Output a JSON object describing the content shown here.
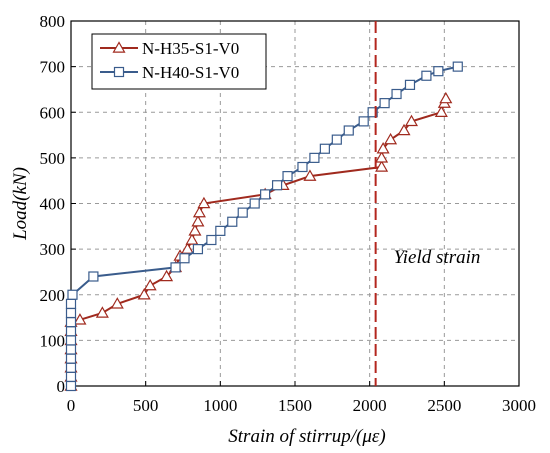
{
  "chart_data": {
    "type": "line",
    "xlabel": "Strain of stirrup/(με)",
    "ylabel": "Load(kN)",
    "xlim": [
      0,
      3000
    ],
    "ylim": [
      0,
      800
    ],
    "xticks": [
      0,
      500,
      1000,
      1500,
      2000,
      2500,
      3000
    ],
    "yticks": [
      0,
      100,
      200,
      300,
      400,
      500,
      600,
      700,
      800
    ],
    "grid": true,
    "legend_position": "top-left",
    "annotation": {
      "text": "Yield strain",
      "x": 2040
    },
    "series": [
      {
        "name": "N-H35-S1-V0",
        "color": "#a02a1e",
        "marker": "triangle",
        "points": [
          [
            0,
            0
          ],
          [
            0,
            20
          ],
          [
            0,
            40
          ],
          [
            0,
            60
          ],
          [
            0,
            80
          ],
          [
            0,
            100
          ],
          [
            0,
            120
          ],
          [
            0,
            140
          ],
          [
            60,
            145
          ],
          [
            210,
            160
          ],
          [
            310,
            180
          ],
          [
            490,
            200
          ],
          [
            530,
            220
          ],
          [
            640,
            240
          ],
          [
            700,
            260
          ],
          [
            730,
            285
          ],
          [
            780,
            300
          ],
          [
            810,
            320
          ],
          [
            830,
            340
          ],
          [
            850,
            360
          ],
          [
            860,
            380
          ],
          [
            890,
            400
          ],
          [
            1300,
            420
          ],
          [
            1420,
            440
          ],
          [
            1600,
            460
          ],
          [
            2080,
            480
          ],
          [
            2080,
            500
          ],
          [
            2090,
            520
          ],
          [
            2140,
            540
          ],
          [
            2230,
            560
          ],
          [
            2280,
            580
          ],
          [
            2480,
            600
          ],
          [
            2500,
            620
          ],
          [
            2510,
            630
          ]
        ]
      },
      {
        "name": "N-H40-S1-V0",
        "color": "#3a5c8c",
        "marker": "square",
        "points": [
          [
            0,
            0
          ],
          [
            0,
            20
          ],
          [
            0,
            40
          ],
          [
            0,
            60
          ],
          [
            0,
            80
          ],
          [
            0,
            100
          ],
          [
            0,
            120
          ],
          [
            0,
            140
          ],
          [
            0,
            160
          ],
          [
            0,
            180
          ],
          [
            10,
            200
          ],
          [
            150,
            240
          ],
          [
            700,
            260
          ],
          [
            760,
            280
          ],
          [
            850,
            300
          ],
          [
            940,
            320
          ],
          [
            1000,
            340
          ],
          [
            1080,
            360
          ],
          [
            1150,
            380
          ],
          [
            1230,
            400
          ],
          [
            1300,
            420
          ],
          [
            1380,
            440
          ],
          [
            1450,
            460
          ],
          [
            1550,
            480
          ],
          [
            1630,
            500
          ],
          [
            1700,
            520
          ],
          [
            1780,
            540
          ],
          [
            1860,
            560
          ],
          [
            1960,
            580
          ],
          [
            2020,
            600
          ],
          [
            2100,
            620
          ],
          [
            2180,
            640
          ],
          [
            2270,
            660
          ],
          [
            2380,
            680
          ],
          [
            2460,
            690
          ],
          [
            2590,
            700
          ]
        ]
      }
    ]
  }
}
